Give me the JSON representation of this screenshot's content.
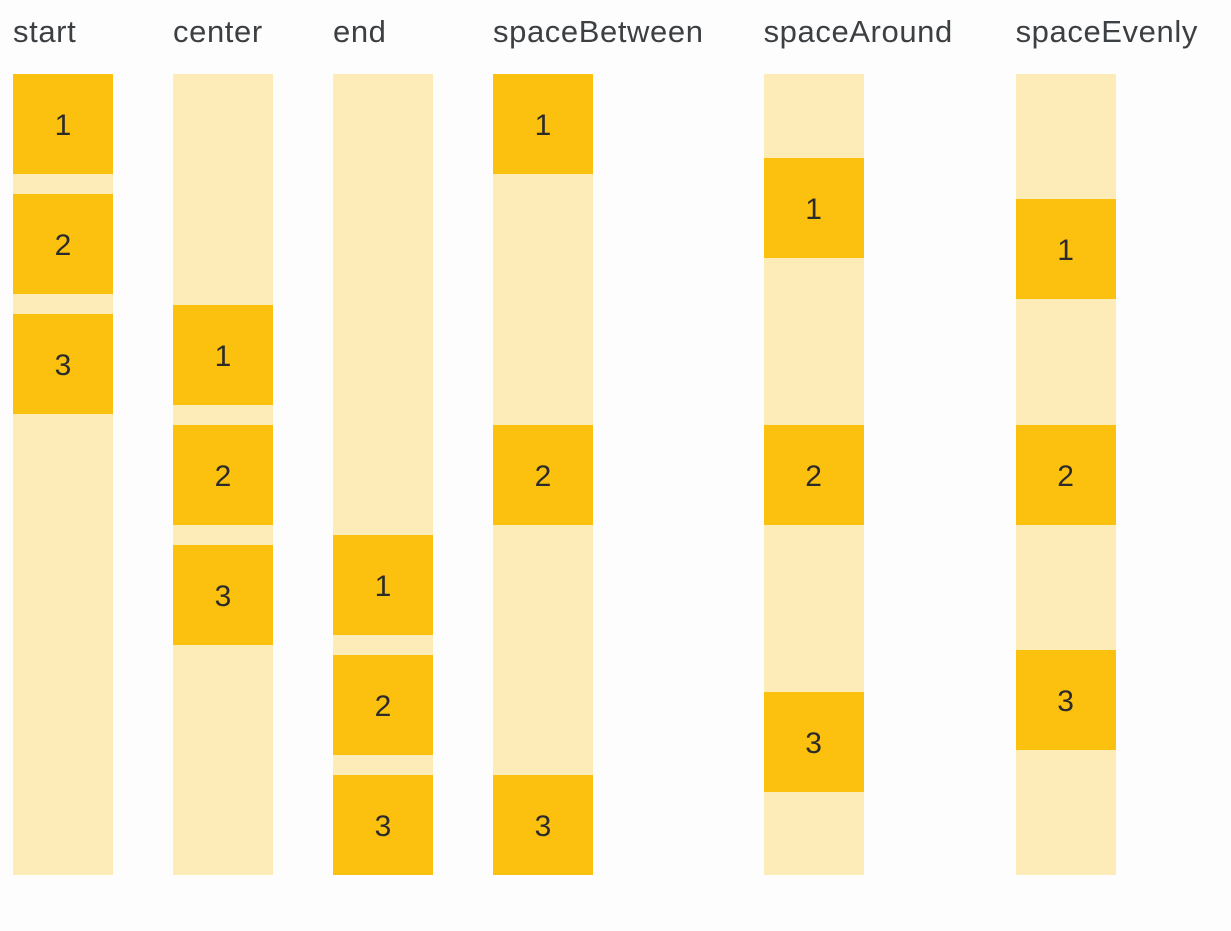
{
  "colors": {
    "page_background": "#FDFDFE",
    "item": "#FCC00E",
    "container": "#FDECB8",
    "label_text": "#3C4043",
    "number_text": "#2B2B2B"
  },
  "columns": [
    {
      "label": "start",
      "items": [
        "1",
        "2",
        "3"
      ]
    },
    {
      "label": "center",
      "items": [
        "1",
        "2",
        "3"
      ]
    },
    {
      "label": "end",
      "items": [
        "1",
        "2",
        "3"
      ]
    },
    {
      "label": "spaceBetween",
      "items": [
        "1",
        "2",
        "3"
      ]
    },
    {
      "label": "spaceAround",
      "items": [
        "1",
        "2",
        "3"
      ]
    },
    {
      "label": "spaceEvenly",
      "items": [
        "1",
        "2",
        "3"
      ]
    }
  ]
}
